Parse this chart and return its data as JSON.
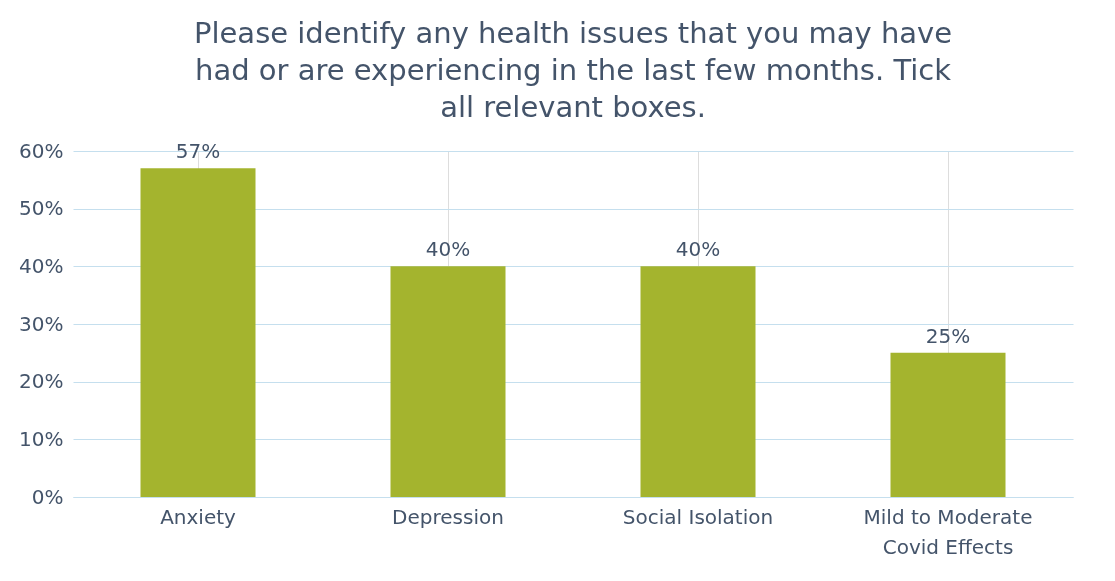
{
  "chart_data": {
    "type": "bar",
    "title": "Please identify any health issues  that you may have had or are experiencing in the last few months. Tick all relevant boxes.",
    "categories": [
      "Anxiety",
      "Depression",
      "Social Isolation",
      "Mild to Moderate Covid Effects"
    ],
    "values": [
      57,
      40,
      40,
      25
    ],
    "color": "#a4b42e",
    "value_labels": [
      "57%",
      "40%",
      "40%",
      "25%"
    ],
    "ylim": [
      0,
      60
    ],
    "yticks": [
      {
        "value": 0,
        "label": "0%"
      },
      {
        "value": 10,
        "label": "10%"
      },
      {
        "value": 20,
        "label": "20%"
      },
      {
        "value": 30,
        "label": "30%"
      },
      {
        "value": 40,
        "label": "40%"
      },
      {
        "value": 50,
        "label": "50%"
      },
      {
        "value": 60,
        "label": "60%"
      }
    ],
    "grid": true
  }
}
